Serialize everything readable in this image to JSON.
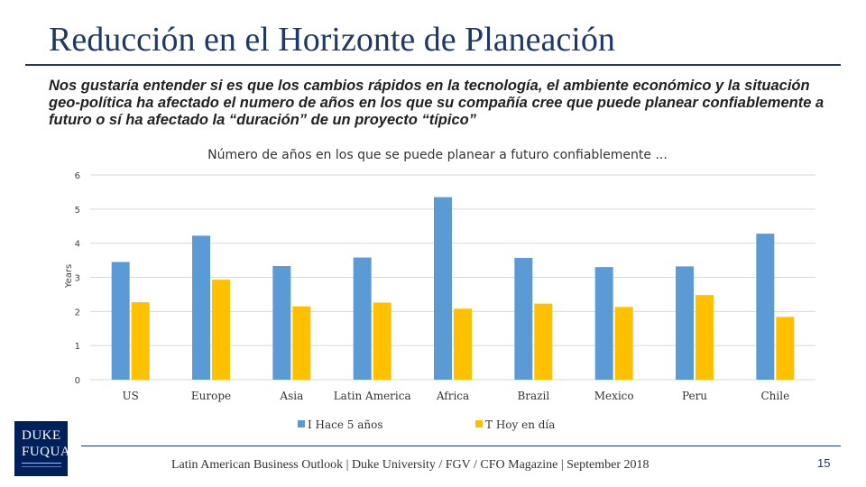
{
  "slide": {
    "title": "Reducción en el Horizonte de Planeación",
    "subtitle": "Nos gustaría entender si es que los cambios rápidos en la tecnología, el ambiente económico y la situación geo-política ha afectado el numero de años en los que su compañía cree que puede planear confiablemente a futuro o sí ha afectado la “duración” de un proyecto “típico”",
    "footer": "Latin American Business Outlook | Duke University / FGV / CFO Magazine | September 2018",
    "page_number": "15",
    "logo": {
      "line1": "DUKE",
      "line2": "FUQUA"
    }
  },
  "colors": {
    "title": "#1f3864",
    "series1": "#5b9bd5",
    "series2": "#ffc000",
    "grid": "#d9d9d9"
  },
  "chart_data": {
    "type": "bar",
    "title": "Número de años en los que se puede planear a futuro confiablemente ...",
    "xlabel": "",
    "ylabel": "Years",
    "ylim": [
      0,
      6
    ],
    "yticks": [
      "0",
      "1",
      "2",
      "3",
      "4",
      "5",
      "6"
    ],
    "categories": [
      "US",
      "Europe",
      "Asia",
      "Latin America",
      "Africa",
      "Brazil",
      "Mexico",
      "Peru",
      "Chile"
    ],
    "series": [
      {
        "name": "I  Hace 5 años",
        "values": [
          3.45,
          4.22,
          3.33,
          3.58,
          5.35,
          3.57,
          3.3,
          3.32,
          4.28
        ]
      },
      {
        "name": "T  Hoy en día",
        "values": [
          2.27,
          2.93,
          2.15,
          2.26,
          2.08,
          2.23,
          2.13,
          2.48,
          1.84
        ]
      }
    ],
    "legend": "bottom"
  }
}
